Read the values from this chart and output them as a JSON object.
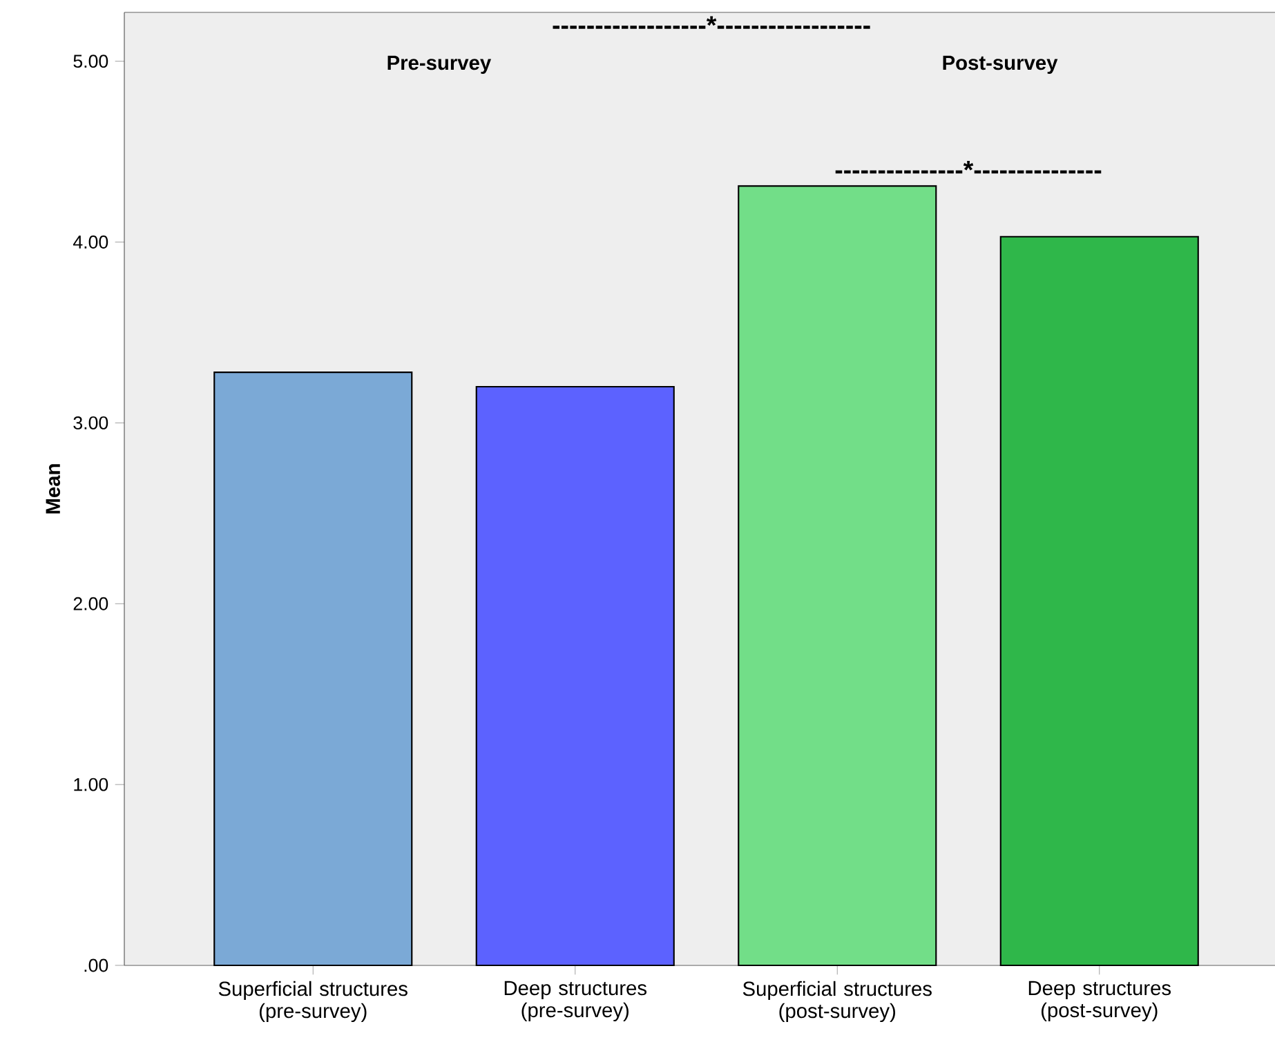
{
  "chart_data": {
    "type": "bar",
    "ylabel": "Mean",
    "categories": [
      "Superficial structures (pre-survey)",
      "Deep structures (pre-survey)",
      "Superficial structures (post-survey)",
      "Deep structures (post-survey)"
    ],
    "values": [
      3.28,
      3.2,
      4.31,
      4.03
    ],
    "colors": [
      "#7ba9d6",
      "#5c62ff",
      "#72de88",
      "#2fb74a"
    ],
    "ylim": [
      0,
      5.27
    ],
    "yticks": [
      {
        "value": 0,
        "label": ".00"
      },
      {
        "value": 1,
        "label": "1.00"
      },
      {
        "value": 2,
        "label": "2.00"
      },
      {
        "value": 3,
        "label": "3.00"
      },
      {
        "value": 4,
        "label": "4.00"
      },
      {
        "value": 5,
        "label": "5.00"
      }
    ],
    "annotations": [
      "------------------*------------------",
      "Pre-survey",
      "Post-survey",
      "---------------*---------------"
    ],
    "grid": false
  }
}
